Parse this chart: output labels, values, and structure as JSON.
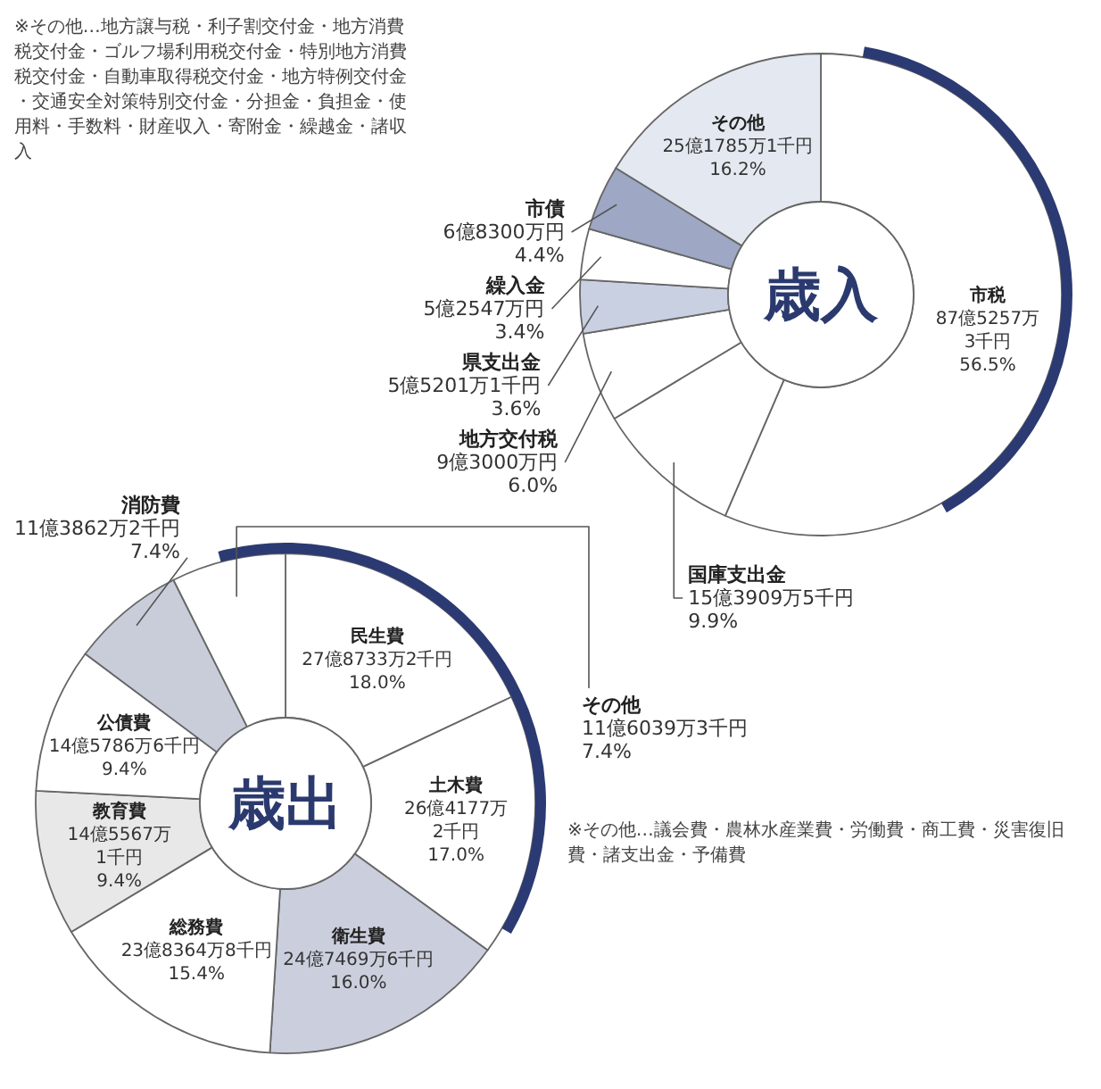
{
  "chart_data": [
    {
      "type": "donut",
      "title": "歳入",
      "categories": [
        "市税",
        "国庫支出金",
        "地方交付税",
        "県支出金",
        "繰入金",
        "市債",
        "その他"
      ],
      "values": [
        56.5,
        9.9,
        6.0,
        3.6,
        3.4,
        4.4,
        16.2
      ],
      "colors": [
        "#ffffff",
        "#ffffff",
        "#ffffff",
        "#c9d0e2",
        "#ffffff",
        "#9ea7c4",
        "#e4e9f1"
      ],
      "value_labels": [
        "87億5257万\n3千円\n56.5%",
        "15億3909万5千円\n9.9%",
        "9億3000万円\n6.0%",
        "5億5201万1千円\n3.6%",
        "5億2547万円\n3.4%",
        "6億8300万円\n4.4%",
        "25億1785万1千円\n16.2%"
      ],
      "annotations": [
        "※その他…地方譲与税・利子割交付金・地方消費税交付金・ゴルフ場利用税交付金・特別地方消費税交付金・自動車取得税交付金・地方特例交付金・交通安全対策特別交付金・分担金・負担金・使用料・手数料・財産収入・寄附金・繰越金・諸収入"
      ]
    },
    {
      "type": "donut",
      "title": "歳出",
      "categories": [
        "民生費",
        "土木費",
        "衛生費",
        "総務費",
        "教育費",
        "公債費",
        "消防費",
        "その他"
      ],
      "values": [
        18.0,
        17.0,
        16.0,
        15.4,
        9.4,
        9.4,
        7.4,
        7.4
      ],
      "colors": [
        "#ffffff",
        "#ffffff",
        "#cbcfdd",
        "#ffffff",
        "#e8e8e8",
        "#ffffff",
        "#c9cdd9",
        "#ffffff"
      ],
      "value_labels": [
        "27億8733万2千円\n18.0%",
        "26億4177万\n2千円\n17.0%",
        "24億7469万6千円\n16.0%",
        "23億8364万8千円\n15.4%",
        "14億5567万\n1千円\n9.4%",
        "14億5786万6千円\n9.4%",
        "11億3862万2千円\n7.4%",
        "11億6039万3千円\n7.4%"
      ],
      "annotations": [
        "※その他…議会費・農林水産業費・労働費・商工費・災害復旧費・諸支出金・予備費"
      ]
    }
  ]
}
